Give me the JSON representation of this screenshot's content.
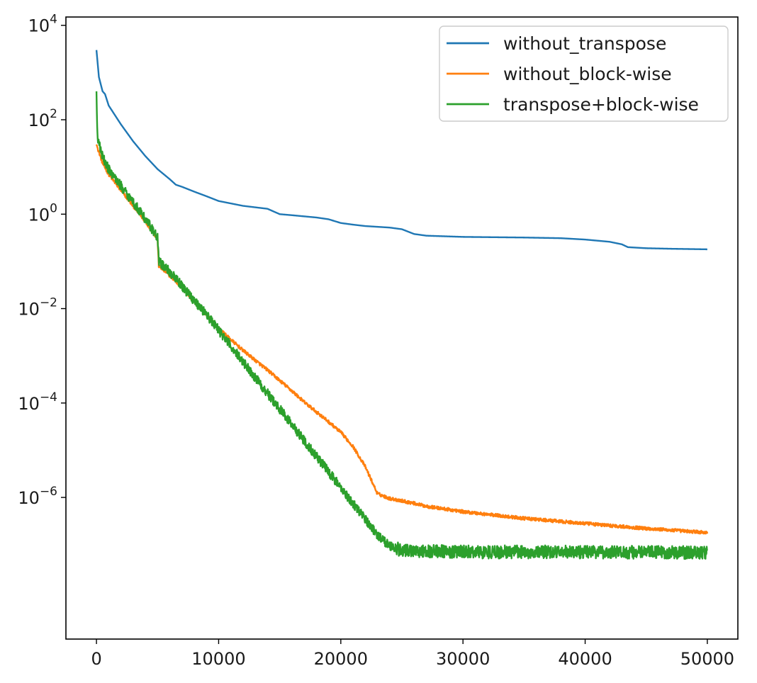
{
  "chart_data": {
    "type": "line",
    "title": "",
    "xlabel": "",
    "ylabel": "",
    "xlim": [
      -2500,
      52500
    ],
    "ylim": [
      1e-09,
      15000
    ],
    "yscale": "log",
    "grid": false,
    "legend_position": "top-right",
    "x_ticks": [
      {
        "value": 0,
        "label": "0"
      },
      {
        "value": 10000,
        "label": "10000"
      },
      {
        "value": 20000,
        "label": "20000"
      },
      {
        "value": 30000,
        "label": "30000"
      },
      {
        "value": 40000,
        "label": "40000"
      },
      {
        "value": 50000,
        "label": "50000"
      }
    ],
    "y_ticks": [
      {
        "value": 10000,
        "base": "10",
        "exp": "4"
      },
      {
        "value": 100,
        "base": "10",
        "exp": "2"
      },
      {
        "value": 1,
        "base": "10",
        "exp": "0"
      },
      {
        "value": 0.01,
        "base": "10",
        "exp": "−2"
      },
      {
        "value": 0.0001,
        "base": "10",
        "exp": "−4"
      },
      {
        "value": 1e-06,
        "base": "10",
        "exp": "−6"
      }
    ],
    "series": [
      {
        "name": "without_transpose",
        "color": "#1f77b4",
        "noise": 0,
        "points": [
          [
            0,
            3000
          ],
          [
            200,
            800
          ],
          [
            500,
            400
          ],
          [
            700,
            350
          ],
          [
            1000,
            200
          ],
          [
            2000,
            80
          ],
          [
            3000,
            35
          ],
          [
            4000,
            17
          ],
          [
            5000,
            9
          ],
          [
            6000,
            5.5
          ],
          [
            6500,
            4.2
          ],
          [
            7000,
            3.8
          ],
          [
            8000,
            3
          ],
          [
            9000,
            2.4
          ],
          [
            10000,
            1.9
          ],
          [
            12000,
            1.5
          ],
          [
            14000,
            1.3
          ],
          [
            15000,
            1.0
          ],
          [
            16000,
            0.95
          ],
          [
            18000,
            0.85
          ],
          [
            19000,
            0.78
          ],
          [
            20000,
            0.65
          ],
          [
            21000,
            0.6
          ],
          [
            22000,
            0.56
          ],
          [
            24000,
            0.52
          ],
          [
            25000,
            0.48
          ],
          [
            26000,
            0.38
          ],
          [
            27000,
            0.35
          ],
          [
            30000,
            0.33
          ],
          [
            35000,
            0.32
          ],
          [
            38000,
            0.31
          ],
          [
            40000,
            0.29
          ],
          [
            42000,
            0.26
          ],
          [
            43000,
            0.23
          ],
          [
            43500,
            0.2
          ],
          [
            45000,
            0.19
          ],
          [
            47000,
            0.185
          ],
          [
            50000,
            0.18
          ]
        ]
      },
      {
        "name": "without_block-wise",
        "color": "#ff7f0e",
        "noise": 0.035,
        "points": [
          [
            0,
            30
          ],
          [
            500,
            12
          ],
          [
            1000,
            7
          ],
          [
            2000,
            3.2
          ],
          [
            3000,
            1.5
          ],
          [
            4000,
            0.7
          ],
          [
            5000,
            0.3
          ],
          [
            5100,
            0.08
          ],
          [
            6000,
            0.05
          ],
          [
            7000,
            0.028
          ],
          [
            8000,
            0.014
          ],
          [
            9000,
            0.0075
          ],
          [
            10000,
            0.0038
          ],
          [
            11000,
            0.0022
          ],
          [
            12000,
            0.0013
          ],
          [
            13000,
            0.0008
          ],
          [
            14000,
            0.0005
          ],
          [
            15000,
            0.0003
          ],
          [
            16000,
            0.00018
          ],
          [
            17000,
            0.000105
          ],
          [
            18000,
            6.5e-05
          ],
          [
            19000,
            4e-05
          ],
          [
            20000,
            2.4e-05
          ],
          [
            21000,
            1.2e-05
          ],
          [
            22000,
            4.5e-06
          ],
          [
            23000,
            1.2e-06
          ],
          [
            24000,
            9.5e-07
          ],
          [
            25000,
            8.5e-07
          ],
          [
            26000,
            7.5e-07
          ],
          [
            27000,
            6.5e-07
          ],
          [
            30000,
            5e-07
          ],
          [
            35000,
            3.6e-07
          ],
          [
            40000,
            2.8e-07
          ],
          [
            45000,
            2.2e-07
          ],
          [
            50000,
            1.8e-07
          ]
        ]
      },
      {
        "name": "transpose+block-wise",
        "color": "#2ca02c",
        "noise": 0.1,
        "points": [
          [
            0,
            400
          ],
          [
            30,
            150
          ],
          [
            60,
            70
          ],
          [
            100,
            40
          ],
          [
            500,
            16
          ],
          [
            1000,
            9
          ],
          [
            2000,
            4
          ],
          [
            3000,
            1.8
          ],
          [
            4000,
            0.8
          ],
          [
            5000,
            0.32
          ],
          [
            5100,
            0.1
          ],
          [
            6000,
            0.06
          ],
          [
            7000,
            0.03
          ],
          [
            8000,
            0.015
          ],
          [
            9000,
            0.0075
          ],
          [
            10000,
            0.0035
          ],
          [
            11000,
            0.0016
          ],
          [
            12000,
            0.00075
          ],
          [
            13000,
            0.00035
          ],
          [
            14000,
            0.00016
          ],
          [
            15000,
            7.5e-05
          ],
          [
            16000,
            3.5e-05
          ],
          [
            17000,
            1.6e-05
          ],
          [
            18000,
            7.5e-06
          ],
          [
            19000,
            3.5e-06
          ],
          [
            20000,
            1.6e-06
          ],
          [
            21000,
            7.5e-07
          ],
          [
            22000,
            3.5e-07
          ],
          [
            23000,
            1.6e-07
          ],
          [
            24000,
            9.5e-08
          ],
          [
            25000,
            7.5e-08
          ],
          [
            30000,
            7e-08
          ],
          [
            40000,
            7e-08
          ],
          [
            50000,
            6.8e-08
          ]
        ]
      }
    ]
  }
}
